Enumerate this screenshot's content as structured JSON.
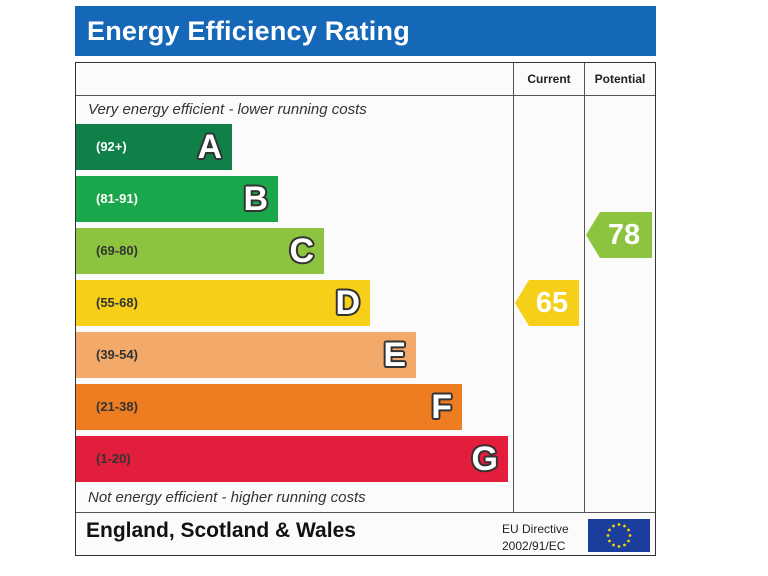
{
  "chart_data": {
    "type": "energy-rating",
    "title": "Energy Efficiency Rating",
    "columns": [
      "Current",
      "Potential"
    ],
    "top_caption": "Very energy efficient - lower running costs",
    "bottom_caption": "Not energy efficient - higher running costs",
    "bands": [
      {
        "letter": "A",
        "range": "(92+)",
        "color": "#0f8048",
        "range_color": "#ffffff"
      },
      {
        "letter": "B",
        "range": "(81-91)",
        "color": "#1aa64a",
        "range_color": "#ffffff"
      },
      {
        "letter": "C",
        "range": "(69-80)",
        "color": "#8cc43f",
        "range_color": "#333333"
      },
      {
        "letter": "D",
        "range": "(55-68)",
        "color": "#f6cf19",
        "range_color": "#333333"
      },
      {
        "letter": "E",
        "range": "(39-54)",
        "color": "#f2a96a",
        "range_color": "#333333"
      },
      {
        "letter": "F",
        "range": "(21-38)",
        "color": "#ee7d22",
        "range_color": "#333333"
      },
      {
        "letter": "G",
        "range": "(1-20)",
        "color": "#e31d3c",
        "range_color": "#333333"
      }
    ],
    "current": {
      "value": "65",
      "band": "D",
      "color": "#f6cf19"
    },
    "potential": {
      "value": "78",
      "band": "C",
      "color": "#8cc43f"
    }
  },
  "footer": {
    "region": "England, Scotland & Wales",
    "directive_line1": "EU Directive",
    "directive_line2": "2002/91/EC"
  },
  "colors": {
    "title_bg": "#1567b8",
    "flag_bg": "#1b3e9c",
    "flag_star": "#f7d000"
  }
}
